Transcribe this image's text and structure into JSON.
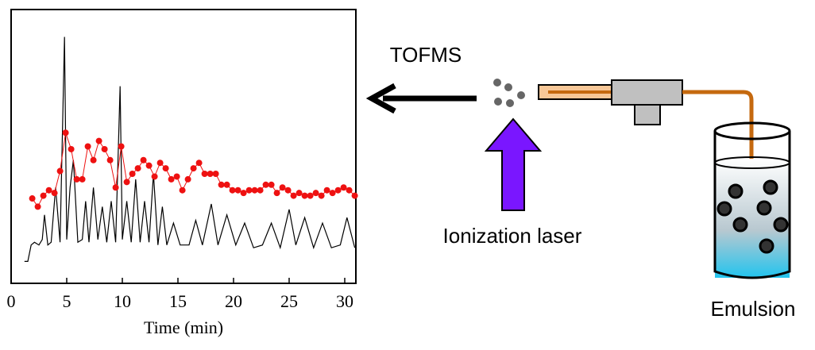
{
  "chart_data": {
    "type": "line",
    "x_label": "Time (min)",
    "xlim": [
      0,
      31
    ],
    "xticks": [
      0,
      5,
      10,
      15,
      20,
      25,
      30
    ],
    "ylim": [
      0,
      100
    ],
    "series": [
      {
        "color": "#000000",
        "marker": false,
        "x": [
          1.2,
          1.5,
          1.8,
          2.1,
          2.5,
          2.8,
          3.0,
          3.3,
          3.6,
          4.0,
          4.4,
          4.8,
          5.0,
          5.3,
          5.6,
          6.0,
          6.4,
          6.7,
          7.0,
          7.4,
          7.8,
          8.2,
          8.6,
          9.0,
          9.4,
          9.8,
          10.0,
          10.4,
          10.8,
          11.2,
          11.6,
          12.0,
          12.4,
          12.8,
          13.2,
          13.6,
          14.0,
          14.6,
          15.2,
          16.0,
          16.6,
          17.2,
          18.0,
          18.6,
          19.4,
          20.2,
          21.0,
          21.8,
          22.6,
          23.4,
          24.2,
          25.0,
          25.6,
          26.4,
          27.2,
          28.0,
          28.8,
          29.6,
          30.2,
          30.9
        ],
        "values": [
          8,
          8,
          14,
          15,
          14,
          16,
          25,
          14,
          15,
          35,
          15,
          90,
          16,
          35,
          45,
          15,
          16,
          30,
          15,
          35,
          16,
          28,
          15,
          30,
          15,
          72,
          16,
          30,
          15,
          38,
          15,
          30,
          15,
          40,
          14,
          28,
          14,
          22,
          14,
          14,
          23,
          14,
          29,
          14,
          25,
          14,
          22,
          13,
          14,
          22,
          13,
          27,
          14,
          24,
          13,
          22,
          13,
          14,
          24,
          13
        ]
      },
      {
        "color": "#ee1111",
        "marker": true,
        "x": [
          1.9,
          2.4,
          2.9,
          3.4,
          3.9,
          4.4,
          4.9,
          5.4,
          5.9,
          6.4,
          6.9,
          7.4,
          7.9,
          8.4,
          8.9,
          9.4,
          9.9,
          10.4,
          10.9,
          11.4,
          11.9,
          12.4,
          12.9,
          13.4,
          13.9,
          14.4,
          14.9,
          15.4,
          15.9,
          16.4,
          16.9,
          17.4,
          17.9,
          18.4,
          18.9,
          19.4,
          19.9,
          20.4,
          20.9,
          21.4,
          21.9,
          22.4,
          22.9,
          23.4,
          23.9,
          24.4,
          24.9,
          25.4,
          25.9,
          26.4,
          26.9,
          27.4,
          27.9,
          28.4,
          28.9,
          29.4,
          29.9,
          30.4,
          30.9
        ],
        "values": [
          31,
          28,
          32,
          34,
          33,
          41,
          55,
          49,
          38,
          38,
          50,
          45,
          52,
          49,
          45,
          35,
          50,
          37,
          40,
          42,
          45,
          43,
          39,
          44,
          42,
          38,
          39,
          34,
          38,
          42,
          44,
          40,
          40,
          40,
          36,
          36,
          34,
          34,
          33,
          34,
          34,
          34,
          36,
          36,
          33,
          35,
          34,
          32,
          33,
          32,
          32,
          33,
          32,
          34,
          33,
          34,
          35,
          34,
          32
        ]
      }
    ]
  },
  "diagram": {
    "tofms": "TOFMS",
    "laser": "Ionization laser",
    "emulsion": "Emulsion"
  }
}
